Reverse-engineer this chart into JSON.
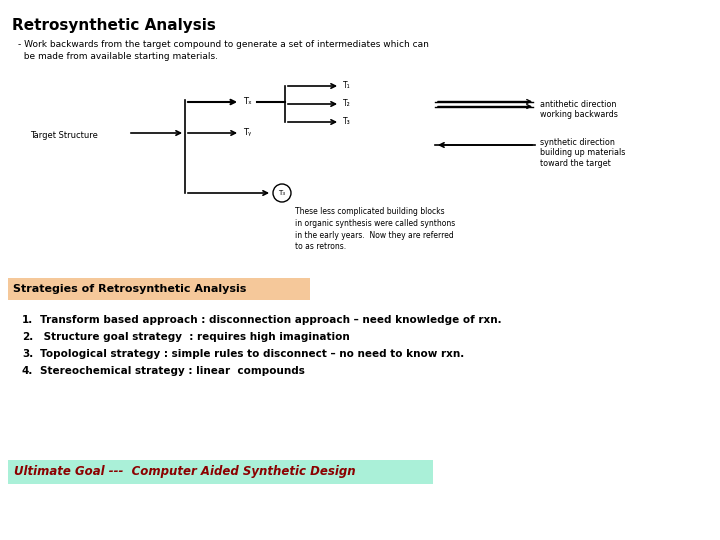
{
  "bg_color": "#ffffff",
  "title": "Retrosynthetic Analysis",
  "subtitle_line1": "- Work backwards from the target compound to generate a set of intermediates which can",
  "subtitle_line2": "  be made from available starting materials.",
  "strategies_box_color": "#f5c89a",
  "strategies_title": "Strategies of Retrosynthetic Analysis",
  "items": [
    "Transform based approach : disconnection approach – need knowledge of rxn.",
    " Structure goal strategy  : requires high imagination",
    "Topological strategy : simple rules to disconnect – no need to know rxn.",
    "Stereochemical strategy : linear  compounds"
  ],
  "ultimate_box_color": "#aaf0d8",
  "ultimate_text": "Ultimate Goal ---  Computer Aided Synthetic Design",
  "diagram": {
    "target_label": "Target Structure",
    "tx_label": "Tₓ",
    "ty_label": "Tᵧ",
    "t3_label": "T₃",
    "t1_label": "T₁",
    "t2_label": "T₂",
    "t3b_label": "T₃",
    "antithetic_label": "antithetic direction\nworking backwards",
    "synthetic_label": "synthetic direction\nbuilding up materials\ntoward the target",
    "retron_text": "These less complicated building blocks\nin organic synthesis were called synthons\nin the early years.  Now they are referred\nto as retrons."
  }
}
